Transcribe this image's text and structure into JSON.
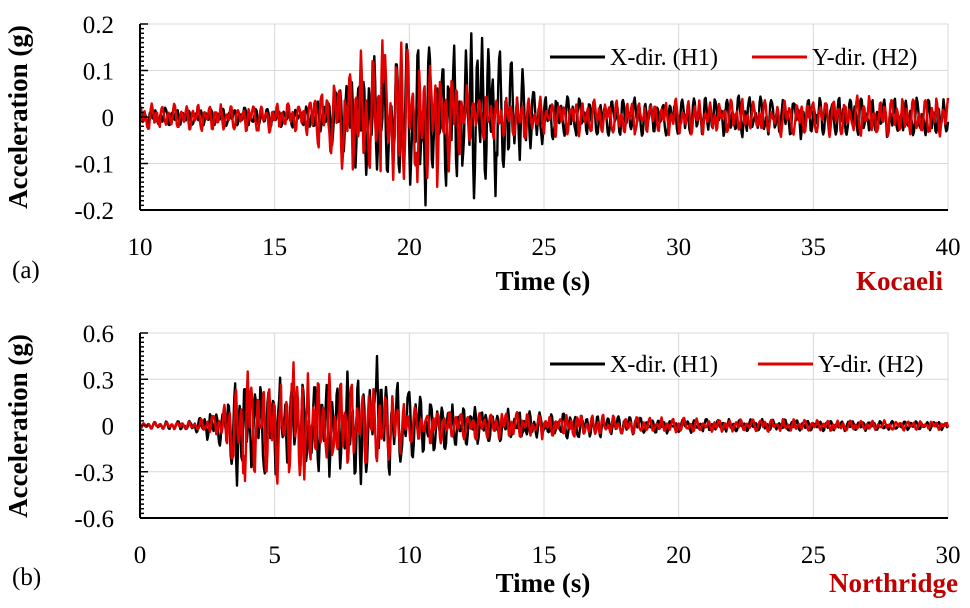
{
  "colors": {
    "x_series": "#000000",
    "y_series": "#e00000",
    "grid": "#d9d9d9",
    "earthquake_name": "#c00000"
  },
  "chart_data": [
    {
      "type": "line",
      "panel_label": "(a)",
      "earthquake": "Kocaeli",
      "xlabel": "Time (s)",
      "ylabel": "Acceleration (g)",
      "xlim": [
        10,
        40
      ],
      "ylim": [
        -0.2,
        0.2
      ],
      "xticks": [
        "10",
        "15",
        "20",
        "25",
        "30",
        "35",
        "40"
      ],
      "yticks": [
        "0.2",
        "0.1",
        "0",
        "-0.1",
        "-0.2"
      ],
      "grid": true,
      "legend_position": "top-right",
      "series": [
        {
          "name": "X-dir. (H1)",
          "color": "#000000",
          "envelope_t": [
            10,
            16,
            17,
            18,
            19,
            20,
            21,
            22,
            23,
            24,
            25,
            27,
            30,
            35,
            40
          ],
          "envelope_amp": [
            0.02,
            0.025,
            0.05,
            0.13,
            0.16,
            0.18,
            0.17,
            0.18,
            0.17,
            0.14,
            0.06,
            0.045,
            0.045,
            0.05,
            0.045
          ],
          "peaks": [
            [
              22.3,
              0.18
            ],
            [
              20.6,
              -0.19
            ],
            [
              22.7,
              0.17
            ],
            [
              23.2,
              -0.17
            ]
          ]
        },
        {
          "name": "Y-dir. (H2)",
          "color": "#e00000",
          "envelope_t": [
            10,
            16,
            17,
            18,
            19,
            20,
            21,
            22,
            23,
            24,
            25,
            27,
            30,
            35,
            40
          ],
          "envelope_amp": [
            0.03,
            0.035,
            0.09,
            0.14,
            0.16,
            0.15,
            0.16,
            0.08,
            0.05,
            0.05,
            0.045,
            0.04,
            0.04,
            0.045,
            0.05
          ],
          "peaks": [
            [
              19.0,
              0.165
            ],
            [
              19.7,
              0.16
            ],
            [
              19.4,
              -0.135
            ],
            [
              20.3,
              -0.14
            ]
          ]
        }
      ]
    },
    {
      "type": "line",
      "panel_label": "(b)",
      "earthquake": "Northridge",
      "xlabel": "Time (s)",
      "ylabel": "Acceleration (g)",
      "xlim": [
        0,
        30
      ],
      "ylim": [
        -0.6,
        0.6
      ],
      "xticks": [
        "0",
        "5",
        "10",
        "15",
        "20",
        "25",
        "30"
      ],
      "yticks": [
        "0.6",
        "0.3",
        "0",
        "-0.3",
        "-0.6"
      ],
      "grid": true,
      "legend_position": "top-right",
      "series": [
        {
          "name": "X-dir. (H1)",
          "color": "#000000",
          "envelope_t": [
            0,
            2,
            3,
            3.5,
            4.5,
            6,
            7.5,
            8.8,
            10,
            12,
            15,
            20,
            25,
            30
          ],
          "envelope_amp": [
            0.02,
            0.04,
            0.15,
            0.35,
            0.33,
            0.3,
            0.35,
            0.4,
            0.25,
            0.15,
            0.1,
            0.05,
            0.04,
            0.03
          ],
          "peaks": [
            [
              8.8,
              0.45
            ],
            [
              3.6,
              -0.39
            ],
            [
              8.2,
              -0.38
            ],
            [
              5.2,
              0.31
            ]
          ]
        },
        {
          "name": "Y-dir. (H2)",
          "color": "#e00000",
          "envelope_t": [
            0,
            2,
            3,
            3.5,
            4.5,
            6,
            7.5,
            8.8,
            10,
            12,
            15,
            20,
            25,
            30
          ],
          "envelope_amp": [
            0.02,
            0.03,
            0.1,
            0.35,
            0.38,
            0.4,
            0.32,
            0.3,
            0.15,
            0.1,
            0.09,
            0.05,
            0.04,
            0.03
          ],
          "peaks": [
            [
              5.7,
              0.41
            ],
            [
              4.0,
              0.35
            ],
            [
              3.9,
              -0.36
            ],
            [
              6.1,
              -0.35
            ]
          ]
        }
      ]
    }
  ]
}
